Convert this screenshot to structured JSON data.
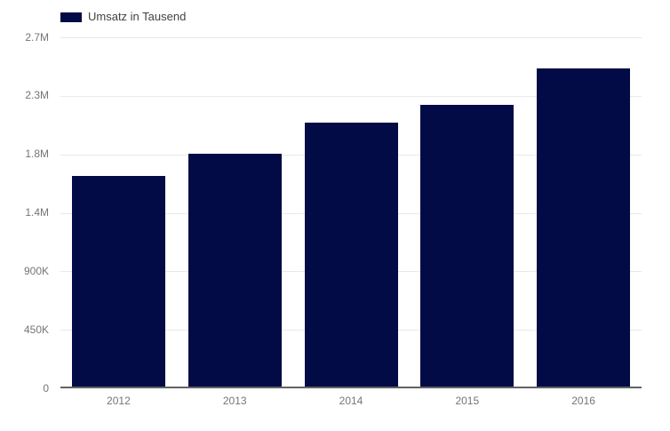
{
  "chart_data": {
    "type": "bar",
    "title": "",
    "legend": "Umsatz in Tausend",
    "legend_position": "top-left",
    "categories": [
      "2012",
      "2013",
      "2014",
      "2015",
      "2016"
    ],
    "series": [
      {
        "name": "Umsatz in Tausend",
        "values": [
          1620000,
          1790000,
          2030000,
          2170000,
          2450000
        ]
      }
    ],
    "xlabel": "",
    "ylabel": "",
    "ylim": [
      0,
      2700000
    ],
    "yticks": [
      {
        "value": 0,
        "label": "0"
      },
      {
        "value": 450000,
        "label": "450K"
      },
      {
        "value": 900000,
        "label": "900K"
      },
      {
        "value": 1350000,
        "label": "1.4M"
      },
      {
        "value": 1800000,
        "label": "1.8M"
      },
      {
        "value": 2250000,
        "label": "2.3M"
      },
      {
        "value": 2700000,
        "label": "2.7M"
      }
    ],
    "grid": "horizontal",
    "colors": {
      "bar": "#020b46",
      "gridline": "#e9e9e9",
      "axis_line": "#636363",
      "tick_label": "#757575",
      "legend_text": "#424242",
      "background": "#ffffff"
    }
  }
}
